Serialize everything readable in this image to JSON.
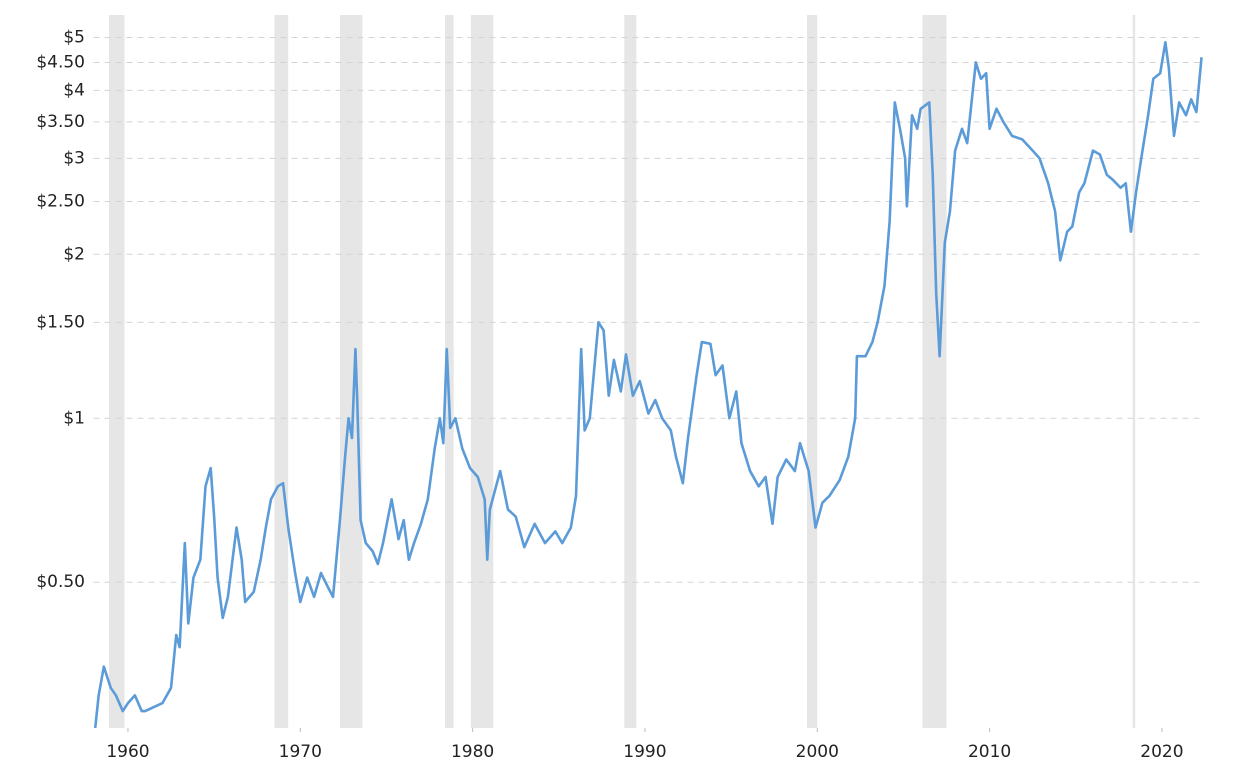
{
  "chart_data": {
    "type": "line",
    "color": "#5b9bd8",
    "log_y": true,
    "grid": true,
    "shade_color": "#e6e6e6",
    "xlim": [
      1958,
      2022.5
    ],
    "xticks": [
      1960,
      1970,
      1980,
      1990,
      2000,
      2010,
      2020
    ],
    "ylim": [
      0.27,
      5.5
    ],
    "yticks": [
      {
        "value": 0.5,
        "label": "$0.50"
      },
      {
        "value": 1,
        "label": "$1"
      },
      {
        "value": 1.5,
        "label": "$1.50"
      },
      {
        "value": 2,
        "label": "$2"
      },
      {
        "value": 2.5,
        "label": "$2.50"
      },
      {
        "value": 3,
        "label": "$3"
      },
      {
        "value": 3.5,
        "label": "$3.50"
      },
      {
        "value": 4,
        "label": "$4"
      },
      {
        "value": 4.5,
        "label": "$4.50"
      },
      {
        "value": 5,
        "label": "$5"
      }
    ],
    "shaded_periods": [
      [
        1958.9,
        1959.8
      ],
      [
        1968.5,
        1969.3
      ],
      [
        1972.3,
        1973.6
      ],
      [
        1978.4,
        1978.9
      ],
      [
        1979.9,
        1981.2
      ],
      [
        1988.8,
        1989.5
      ],
      [
        1999.4,
        2000.0
      ],
      [
        2006.1,
        2007.5
      ],
      [
        2018.3,
        2018.45
      ]
    ],
    "x": [
      1958.1,
      1958.3,
      1958.6,
      1959.0,
      1959.3,
      1959.7,
      1960.0,
      1960.4,
      1960.8,
      1961.0,
      1961.5,
      1962.0,
      1962.5,
      1962.8,
      1963.0,
      1963.3,
      1963.5,
      1963.8,
      1964.2,
      1964.5,
      1964.8,
      1965.0,
      1965.2,
      1965.5,
      1965.8,
      1966.3,
      1966.6,
      1966.8,
      1967.3,
      1967.7,
      1968.0,
      1968.3,
      1968.7,
      1969.0,
      1969.3,
      1969.7,
      1970.0,
      1970.4,
      1970.8,
      1971.2,
      1971.6,
      1971.9,
      1972.3,
      1972.6,
      1972.8,
      1973.0,
      1973.2,
      1973.3,
      1973.5,
      1973.8,
      1974.2,
      1974.5,
      1974.8,
      1975.3,
      1975.7,
      1976.0,
      1976.3,
      1976.6,
      1977.0,
      1977.4,
      1977.8,
      1978.1,
      1978.3,
      1978.5,
      1978.7,
      1979.0,
      1979.4,
      1979.85,
      1980.3,
      1980.7,
      1980.85,
      1981.0,
      1981.6,
      1982.05,
      1982.5,
      1983.0,
      1983.6,
      1984.2,
      1984.8,
      1985.2,
      1985.7,
      1986.0,
      1986.3,
      1986.5,
      1986.8,
      1987.3,
      1987.6,
      1987.9,
      1988.2,
      1988.6,
      1988.9,
      1989.3,
      1989.7,
      1990.2,
      1990.6,
      1991.0,
      1991.5,
      1991.8,
      1992.2,
      1992.5,
      1993.0,
      1993.3,
      1993.8,
      1994.1,
      1994.5,
      1994.9,
      1995.3,
      1995.6,
      1996.1,
      1996.6,
      1997.0,
      1997.4,
      1997.7,
      1998.2,
      1998.7,
      1999.0,
      1999.5,
      1999.9,
      2000.3,
      2000.7,
      2001.3,
      2001.8,
      2002.2,
      2002.3,
      2002.8,
      2003.2,
      2003.5,
      2003.9,
      2004.2,
      2004.5,
      2004.8,
      2005.1,
      2005.2,
      2005.5,
      2005.8,
      2006.0,
      2006.5,
      2006.7,
      2006.9,
      2007.1,
      2007.4,
      2007.7,
      2008.0,
      2008.4,
      2008.7,
      2009.2,
      2009.5,
      2009.8,
      2010.0,
      2010.4,
      2010.8,
      2011.3,
      2011.9,
      2012.5,
      2012.9,
      2013.4,
      2013.8,
      2014.1,
      2014.5,
      2014.8,
      2015.2,
      2015.5,
      2016.0,
      2016.4,
      2016.8,
      2017.1,
      2017.6,
      2017.9,
      2018.2,
      2018.5,
      2018.8,
      2019.2,
      2019.5,
      2019.9,
      2020.2,
      2020.4,
      2020.7,
      2021.0,
      2021.4,
      2021.7,
      2022.0,
      2022.3
    ],
    "values": [
      0.27,
      0.31,
      0.35,
      0.32,
      0.31,
      0.29,
      0.3,
      0.31,
      0.29,
      0.29,
      0.295,
      0.3,
      0.32,
      0.4,
      0.38,
      0.59,
      0.42,
      0.51,
      0.55,
      0.75,
      0.81,
      0.66,
      0.51,
      0.43,
      0.47,
      0.63,
      0.55,
      0.46,
      0.48,
      0.55,
      0.63,
      0.71,
      0.75,
      0.76,
      0.63,
      0.52,
      0.46,
      0.51,
      0.47,
      0.52,
      0.49,
      0.47,
      0.65,
      0.85,
      1.0,
      0.92,
      1.34,
      1.09,
      0.65,
      0.59,
      0.57,
      0.54,
      0.59,
      0.71,
      0.6,
      0.65,
      0.55,
      0.59,
      0.64,
      0.71,
      0.88,
      1.0,
      0.9,
      1.34,
      0.96,
      1.0,
      0.88,
      0.81,
      0.78,
      0.71,
      0.55,
      0.68,
      0.8,
      0.68,
      0.66,
      0.58,
      0.64,
      0.59,
      0.62,
      0.59,
      0.63,
      0.72,
      1.34,
      0.95,
      1.0,
      1.5,
      1.45,
      1.1,
      1.28,
      1.12,
      1.31,
      1.1,
      1.17,
      1.02,
      1.08,
      1.0,
      0.95,
      0.85,
      0.76,
      0.92,
      1.2,
      1.38,
      1.37,
      1.2,
      1.25,
      1.0,
      1.12,
      0.9,
      0.8,
      0.75,
      0.78,
      0.64,
      0.78,
      0.84,
      0.8,
      0.9,
      0.8,
      0.63,
      0.7,
      0.72,
      0.77,
      0.85,
      1.0,
      1.3,
      1.3,
      1.38,
      1.5,
      1.75,
      2.3,
      3.8,
      3.4,
      3.0,
      2.45,
      3.6,
      3.4,
      3.7,
      3.8,
      2.8,
      1.7,
      1.3,
      2.1,
      2.4,
      3.1,
      3.4,
      3.2,
      4.5,
      4.2,
      4.3,
      3.4,
      3.7,
      3.5,
      3.3,
      3.25,
      3.1,
      3.0,
      2.7,
      2.4,
      1.95,
      2.2,
      2.25,
      2.6,
      2.7,
      3.1,
      3.05,
      2.8,
      2.75,
      2.65,
      2.7,
      2.2,
      2.6,
      3.0,
      3.6,
      4.2,
      4.3,
      4.9,
      4.4,
      3.3,
      3.8,
      3.6,
      3.85,
      3.65,
      4.6
    ]
  }
}
